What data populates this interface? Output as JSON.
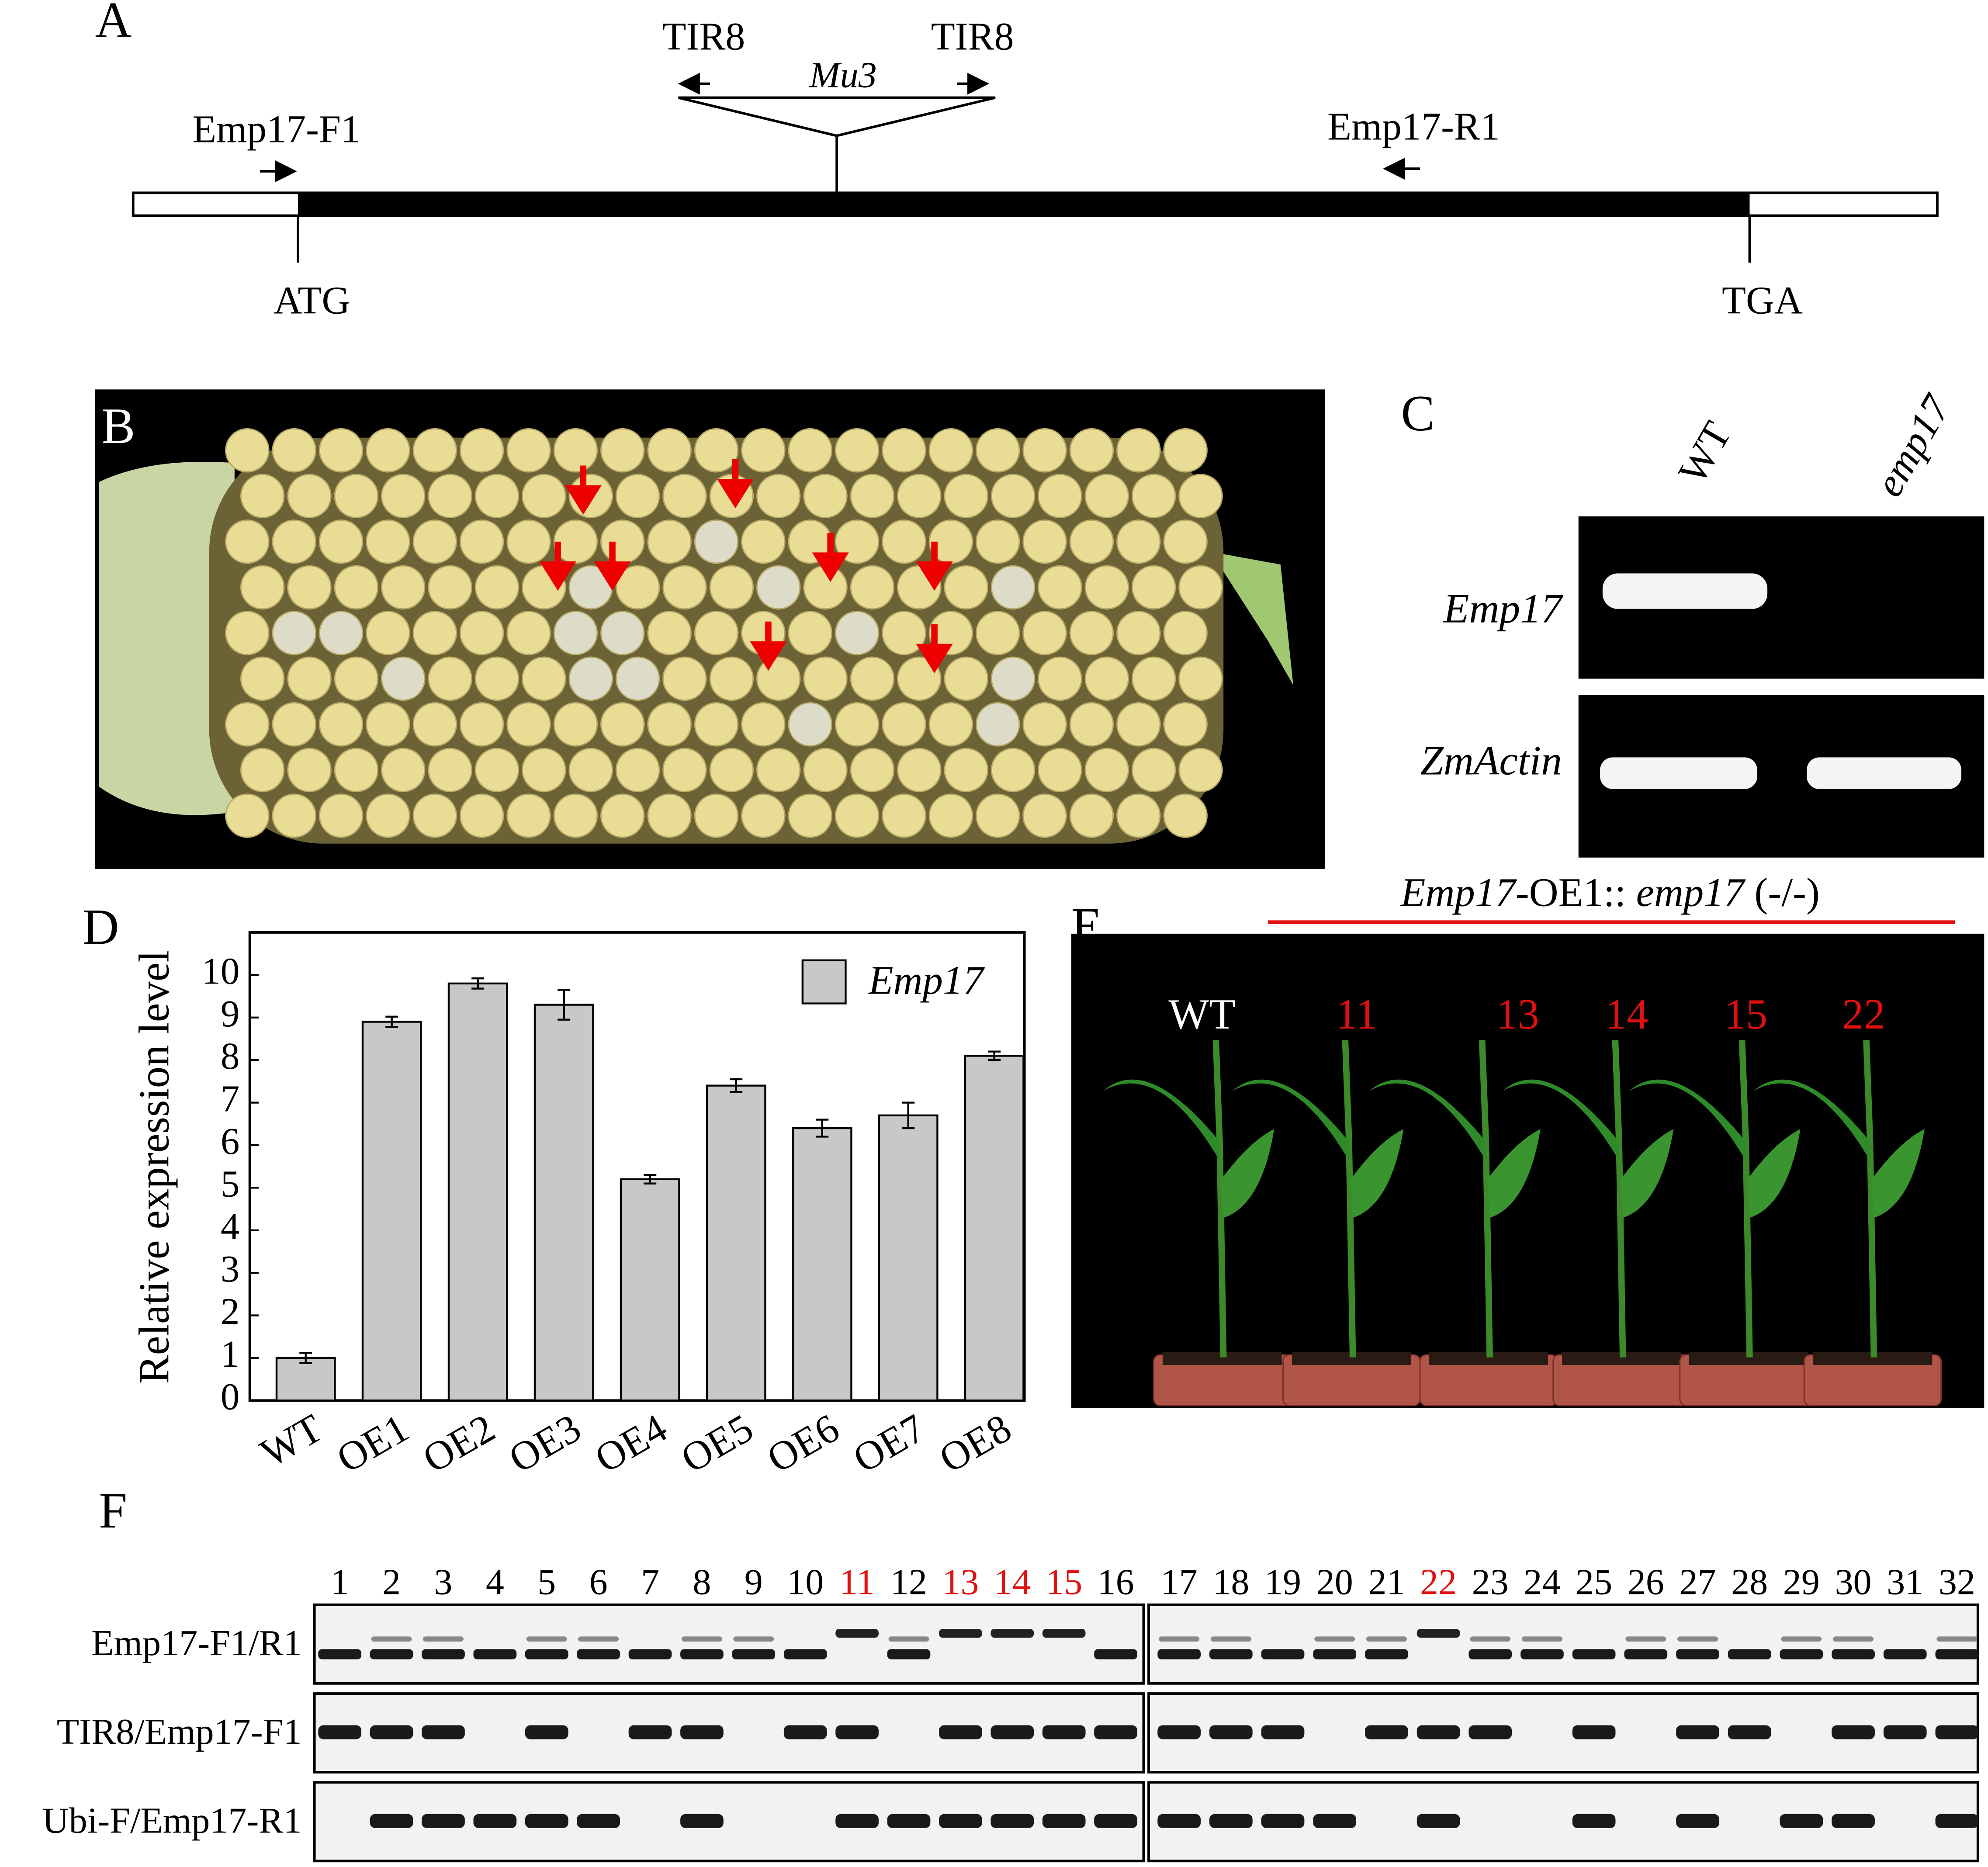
{
  "panel_a": {
    "label": "A",
    "tir8_left": "TIR8",
    "tir8_right": "TIR8",
    "mu3": "Mu3",
    "primer_f": "Emp17-F1",
    "primer_r": "Emp17-R1",
    "start": "ATG",
    "stop": "TGA"
  },
  "panel_b": {
    "label": "B"
  },
  "panel_c": {
    "label": "C",
    "lanes": [
      "WT",
      "emp17"
    ],
    "genes": [
      "Emp17",
      "ZmActin"
    ]
  },
  "chart_data": {
    "type": "bar",
    "panel_label": "D",
    "y_label": "Relative expression level",
    "categories": [
      "WT",
      "OE1",
      "OE2",
      "OE3",
      "OE4",
      "OE5",
      "OE6",
      "OE7",
      "OE8"
    ],
    "series": [
      {
        "name": "Emp17",
        "color": "#c8c8c8",
        "values": [
          1.0,
          8.9,
          9.8,
          9.3,
          5.2,
          7.4,
          6.4,
          6.7,
          8.1
        ],
        "errors": [
          0.12,
          0.12,
          0.12,
          0.35,
          0.1,
          0.15,
          0.2,
          0.3,
          0.1
        ]
      }
    ],
    "ylim": [
      0,
      11
    ],
    "yticks": [
      0,
      1,
      2,
      3,
      4,
      5,
      6,
      7,
      8,
      9,
      10
    ],
    "grid": false,
    "legend": "top-right"
  },
  "panel_e": {
    "label": "E",
    "title_parts": [
      {
        "text": "Emp17",
        "italic": true
      },
      {
        "text": "-OE1::",
        "italic": false
      },
      {
        "text": " emp17",
        "italic": true
      },
      {
        "text": " (-/-)",
        "italic": false
      }
    ],
    "plants": [
      {
        "text": "WT",
        "color": "#ffffff"
      },
      {
        "text": "11",
        "color": "#e01010"
      },
      {
        "text": "13",
        "color": "#e01010"
      },
      {
        "text": "14",
        "color": "#e01010"
      },
      {
        "text": "15",
        "color": "#e01010"
      },
      {
        "text": "22",
        "color": "#e01010"
      }
    ]
  },
  "panel_f": {
    "label": "F",
    "lanes": [
      {
        "text": "1",
        "color": "#000"
      },
      {
        "text": "2",
        "color": "#000"
      },
      {
        "text": "3",
        "color": "#000"
      },
      {
        "text": "4",
        "color": "#000"
      },
      {
        "text": "5",
        "color": "#000"
      },
      {
        "text": "6",
        "color": "#000"
      },
      {
        "text": "7",
        "color": "#000"
      },
      {
        "text": "8",
        "color": "#000"
      },
      {
        "text": "9",
        "color": "#000"
      },
      {
        "text": "10",
        "color": "#000"
      },
      {
        "text": "11",
        "color": "#e01010"
      },
      {
        "text": "12",
        "color": "#000"
      },
      {
        "text": "13",
        "color": "#e01010"
      },
      {
        "text": "14",
        "color": "#e01010"
      },
      {
        "text": "15",
        "color": "#e01010"
      },
      {
        "text": "16",
        "color": "#000"
      },
      {
        "text": "17",
        "color": "#000"
      },
      {
        "text": "18",
        "color": "#000"
      },
      {
        "text": "19",
        "color": "#000"
      },
      {
        "text": "20",
        "color": "#000"
      },
      {
        "text": "21",
        "color": "#000"
      },
      {
        "text": "22",
        "color": "#e01010"
      },
      {
        "text": "23",
        "color": "#000"
      },
      {
        "text": "24",
        "color": "#000"
      },
      {
        "text": "25",
        "color": "#000"
      },
      {
        "text": "26",
        "color": "#000"
      },
      {
        "text": "27",
        "color": "#000"
      },
      {
        "text": "28",
        "color": "#000"
      },
      {
        "text": "29",
        "color": "#000"
      },
      {
        "text": "30",
        "color": "#000"
      },
      {
        "text": "31",
        "color": "#000"
      },
      {
        "text": "32",
        "color": "#000"
      }
    ],
    "rows": [
      "Emp17-F1/R1",
      "TIR8/Emp17-F1",
      "Ubi-F/Emp17-R1"
    ]
  }
}
